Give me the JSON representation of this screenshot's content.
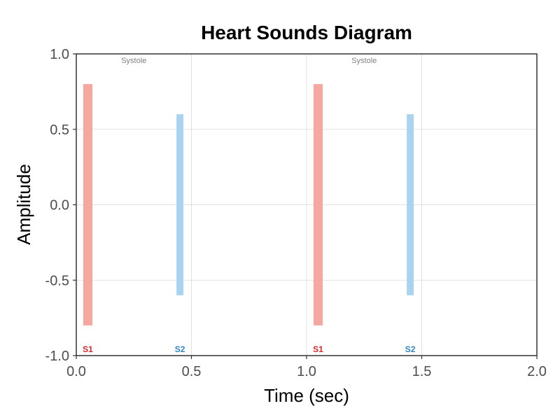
{
  "chart_data": {
    "type": "bar",
    "title": "Heart Sounds Diagram",
    "xlabel": "Time (sec)",
    "ylabel": "Amplitude",
    "xlim": [
      0,
      2
    ],
    "ylim": [
      -1,
      1
    ],
    "x_ticks": [
      0,
      0.5,
      1,
      1.5,
      2
    ],
    "x_tick_labels": [
      "0.0",
      "0.5",
      "1.0",
      "1.5",
      "2.0"
    ],
    "y_ticks": [
      -1,
      -0.5,
      0,
      0.5,
      1
    ],
    "y_tick_labels": [
      "-1.0",
      "-0.5",
      "0.0",
      "0.5",
      "1.0"
    ],
    "grid": true,
    "series": [
      {
        "name": "S1",
        "color": "#f4a8a0",
        "label_color": "#d62728",
        "segments": [
          {
            "x_start": 0.03,
            "x_end": 0.07,
            "y_min": -0.8,
            "y_max": 0.8
          },
          {
            "x_start": 1.03,
            "x_end": 1.07,
            "y_min": -0.8,
            "y_max": 0.8
          }
        ]
      },
      {
        "name": "S2",
        "color": "#a9d4f0",
        "label_color": "#2e86c1",
        "segments": [
          {
            "x_start": 0.435,
            "x_end": 0.465,
            "y_min": -0.6,
            "y_max": 0.6
          },
          {
            "x_start": 1.435,
            "x_end": 1.465,
            "y_min": -0.6,
            "y_max": 0.6
          }
        ]
      }
    ],
    "sound_labels": [
      {
        "text": "S1",
        "x": 0.05,
        "series": 0
      },
      {
        "text": "S2",
        "x": 0.45,
        "series": 1
      },
      {
        "text": "S1",
        "x": 1.05,
        "series": 0
      },
      {
        "text": "S2",
        "x": 1.45,
        "series": 1
      }
    ],
    "region_labels": [
      {
        "text": "Systole",
        "x": 0.25,
        "y": 0.94
      },
      {
        "text": "Systole",
        "x": 1.25,
        "y": 0.94
      }
    ]
  }
}
